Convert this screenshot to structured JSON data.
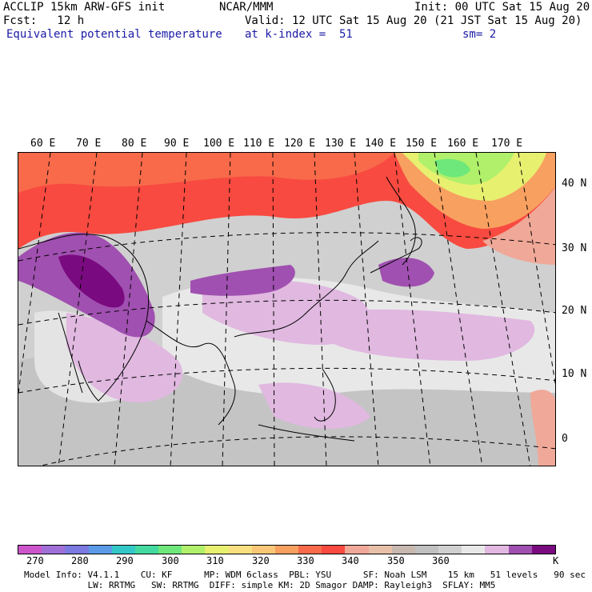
{
  "header": {
    "left_line1": "ACCLIP 15km ARW-GFS init",
    "center_line1": "NCAR/MMM",
    "right_line1": "Init: 00 UTC Sat 15 Aug 20",
    "left_line2": "Fcst:   12 h",
    "right_line2": "Valid: 12 UTC Sat 15 Aug 20 (21 JST Sat 15 Aug 20)",
    "field_name": "Equivalent potential temperature",
    "level": "at k-index =  51",
    "smoothing": "sm= 2"
  },
  "map": {
    "lon_labels": [
      "60 E",
      "70 E",
      "80 E",
      "90 E",
      "100 E",
      "110 E",
      "120 E",
      "130 E",
      "140 E",
      "150 E",
      "160 E",
      "170 E"
    ],
    "lat_labels": [
      "40 N",
      "30 N",
      "20 N",
      "10 N",
      "0"
    ]
  },
  "colorbar": {
    "colors": [
      "#cc55cc",
      "#a070d8",
      "#7a7ae0",
      "#5a9ae6",
      "#33c8c8",
      "#44d9a0",
      "#6ee87a",
      "#b0f06a",
      "#e8f070",
      "#f8e080",
      "#f8c878",
      "#f8a060",
      "#f86a4a",
      "#f84a40",
      "#f0a898",
      "#e8c0a8",
      "#c8b8b0",
      "#c0c0c0",
      "#d0d0d0",
      "#e8e8e8",
      "#e0b8e0",
      "#a050b0",
      "#7a0a80"
    ],
    "tick_labels": [
      "270",
      "280",
      "290",
      "300",
      "310",
      "320",
      "330",
      "340",
      "350",
      "360",
      "K"
    ]
  },
  "footer": {
    "line1": "Model Info: V4.1.1    CU: KF      MP: WDM 6class  PBL: YSU      SF: Noah LSM    15 km   51 levels   90 sec",
    "line2": "            LW: RRTMG   SW: RRTMG  DIFF: simple KM: 2D Smagor DAMP: Rayleigh3  SFLAY: MM5"
  }
}
